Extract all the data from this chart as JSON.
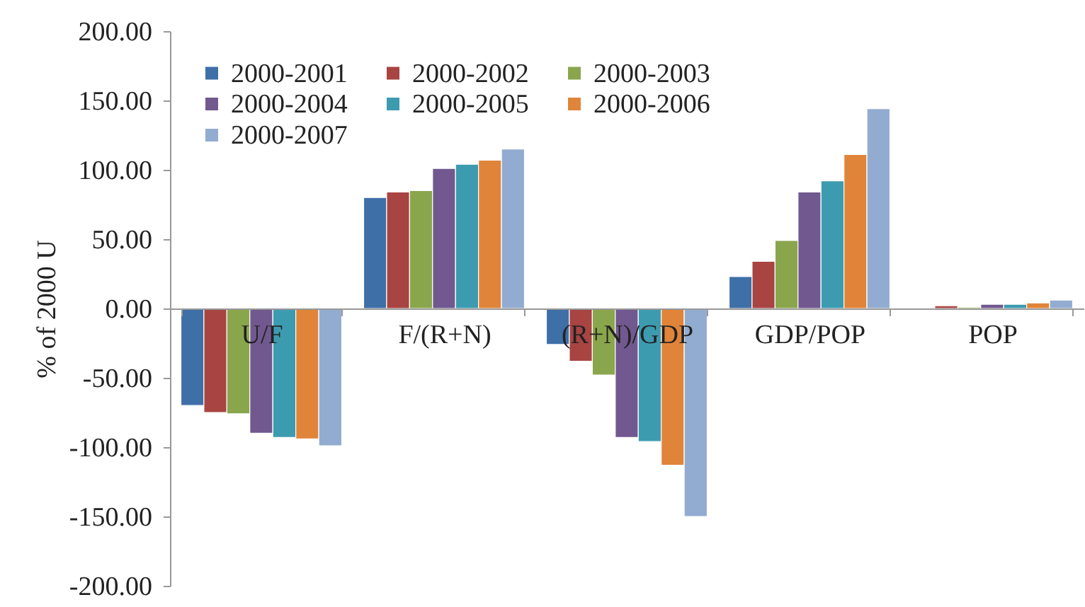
{
  "chart_data": {
    "type": "bar",
    "ylabel": "% of 2000 U",
    "categories": [
      "U/F",
      "F/(R+N)",
      "(R+N)/GDP",
      "GDP/POP",
      "POP"
    ],
    "series": [
      {
        "name": "2000-2001",
        "color": "#3e6fa7",
        "values": [
          -70,
          80,
          -26,
          23,
          -1
        ]
      },
      {
        "name": "2000-2002",
        "color": "#a84442",
        "values": [
          -75,
          84,
          -38,
          34,
          2
        ]
      },
      {
        "name": "2000-2003",
        "color": "#8aa64c",
        "values": [
          -76,
          85,
          -48,
          49,
          1
        ]
      },
      {
        "name": "2000-2004",
        "color": "#71588f",
        "values": [
          -90,
          101,
          -93,
          84,
          3
        ]
      },
      {
        "name": "2000-2005",
        "color": "#3d9bb0",
        "values": [
          -93,
          104,
          -96,
          92,
          3
        ]
      },
      {
        "name": "2000-2006",
        "color": "#e0843a",
        "values": [
          -94,
          107,
          -113,
          111,
          4
        ]
      },
      {
        "name": "2000-2007",
        "color": "#92abd0",
        "values": [
          -99,
          115,
          -150,
          144,
          6
        ]
      }
    ],
    "ylim": [
      -200,
      200
    ],
    "yticks": [
      {
        "value": -200,
        "label": "-200.00"
      },
      {
        "value": -150,
        "label": "-150.00"
      },
      {
        "value": -100,
        "label": "-100.00"
      },
      {
        "value": -50,
        "label": "-50.00"
      },
      {
        "value": 0,
        "label": "0.00"
      },
      {
        "value": 50,
        "label": "50.00"
      },
      {
        "value": 100,
        "label": "100.00"
      },
      {
        "value": 150,
        "label": "150.00"
      },
      {
        "value": 200,
        "label": "200.00"
      }
    ],
    "grid": false,
    "legend": "top left"
  }
}
